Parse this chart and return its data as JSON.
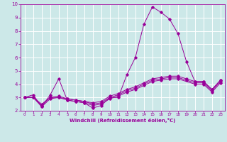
{
  "background_color": "#cce8e8",
  "grid_color": "#ffffff",
  "line_color": "#990099",
  "xlabel": "Windchill (Refroidissement éolien,°C)",
  "xlabel_color": "#990099",
  "xlim": [
    -0.5,
    23.5
  ],
  "ylim": [
    2,
    10
  ],
  "yticks": [
    2,
    3,
    4,
    5,
    6,
    7,
    8,
    9,
    10
  ],
  "xticks": [
    0,
    1,
    2,
    3,
    4,
    5,
    6,
    7,
    8,
    9,
    10,
    11,
    12,
    13,
    14,
    15,
    16,
    17,
    18,
    19,
    20,
    21,
    22,
    23
  ],
  "xtick_fontsize": 4.0,
  "ytick_fontsize": 5.0,
  "xlabel_fontsize": 5.0,
  "lines": [
    {
      "x": [
        0,
        1,
        2,
        3,
        4,
        5,
        6,
        7,
        8,
        9,
        10,
        11,
        12,
        13,
        14,
        15,
        16,
        17,
        18,
        19,
        20,
        21,
        22,
        23
      ],
      "y": [
        3.0,
        3.2,
        2.3,
        3.2,
        4.4,
        2.8,
        2.7,
        2.6,
        2.2,
        2.4,
        3.0,
        3.0,
        4.7,
        6.0,
        8.5,
        9.8,
        9.4,
        8.9,
        7.8,
        5.7,
        4.2,
        4.2,
        3.6,
        4.3
      ]
    },
    {
      "x": [
        0,
        1,
        2,
        3,
        4,
        5,
        6,
        7,
        8,
        9,
        10,
        11,
        12,
        13,
        14,
        15,
        16,
        17,
        18,
        19,
        20,
        21,
        22,
        23
      ],
      "y": [
        3.0,
        3.0,
        2.5,
        3.0,
        3.1,
        2.9,
        2.8,
        2.7,
        2.6,
        2.7,
        3.1,
        3.3,
        3.6,
        3.8,
        4.1,
        4.4,
        4.5,
        4.6,
        4.6,
        4.4,
        4.2,
        4.2,
        3.6,
        4.3
      ]
    },
    {
      "x": [
        0,
        1,
        2,
        3,
        4,
        5,
        6,
        7,
        8,
        9,
        10,
        11,
        12,
        13,
        14,
        15,
        16,
        17,
        18,
        19,
        20,
        21,
        22,
        23
      ],
      "y": [
        3.0,
        3.0,
        2.4,
        3.0,
        3.0,
        2.9,
        2.8,
        2.7,
        2.5,
        2.6,
        3.0,
        3.2,
        3.5,
        3.7,
        4.0,
        4.3,
        4.4,
        4.5,
        4.5,
        4.3,
        4.1,
        4.1,
        3.5,
        4.2
      ]
    },
    {
      "x": [
        0,
        1,
        2,
        3,
        4,
        5,
        6,
        7,
        8,
        9,
        10,
        11,
        12,
        13,
        14,
        15,
        16,
        17,
        18,
        20,
        21,
        22,
        23
      ],
      "y": [
        3.0,
        3.0,
        2.3,
        2.9,
        3.0,
        2.8,
        2.7,
        2.6,
        2.4,
        2.5,
        2.9,
        3.1,
        3.4,
        3.6,
        3.9,
        4.2,
        4.3,
        4.4,
        4.4,
        4.0,
        4.0,
        3.4,
        4.1
      ]
    }
  ]
}
